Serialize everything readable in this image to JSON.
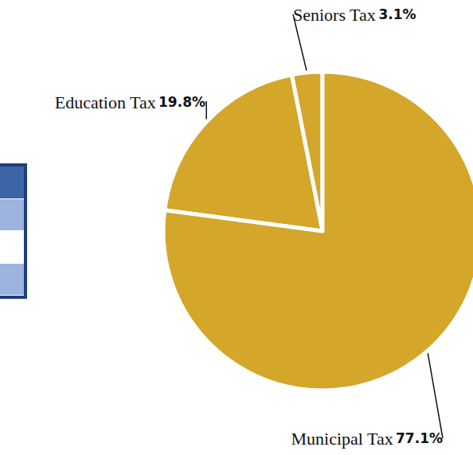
{
  "chart_data": {
    "type": "pie",
    "categories": [
      "Seniors Tax",
      "Education Tax",
      "Municipal Tax"
    ],
    "values": [
      3.1,
      19.8,
      77.1
    ],
    "value_labels": [
      "3.1%",
      "19.8%",
      "77.1%"
    ],
    "color": "#d4a62a",
    "data_labels": true
  }
}
